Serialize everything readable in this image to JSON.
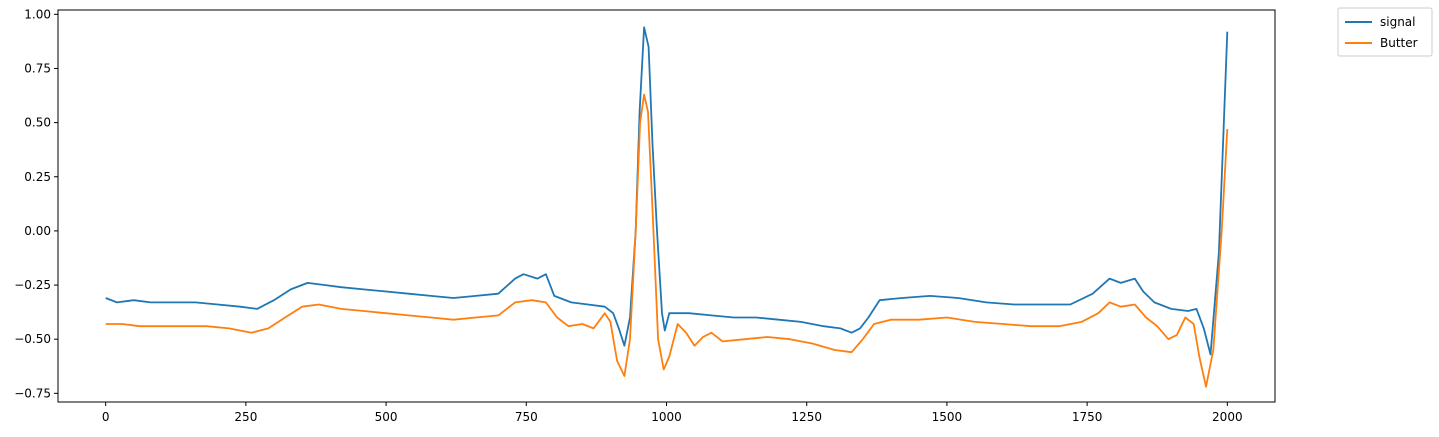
{
  "chart_data": {
    "type": "line",
    "title": "",
    "xlabel": "",
    "ylabel": "",
    "xlim": [
      -85,
      2085
    ],
    "ylim": [
      -0.79,
      1.02
    ],
    "grid": false,
    "legend_position": "outside-top-right",
    "x_ticks": [
      0,
      250,
      500,
      750,
      1000,
      1250,
      1500,
      1750,
      2000
    ],
    "y_ticks": [
      -0.75,
      -0.5,
      -0.25,
      0.0,
      0.25,
      0.5,
      0.75,
      1.0
    ],
    "x_tick_labels": [
      "0",
      "250",
      "500",
      "750",
      "1000",
      "1250",
      "1500",
      "1750",
      "2000"
    ],
    "y_tick_labels": [
      "−0.75",
      "−0.50",
      "−0.25",
      "0.00",
      "0.25",
      "0.50",
      "0.75",
      "1.00"
    ],
    "series": [
      {
        "name": "signal",
        "color": "#1f77b4",
        "points": [
          [
            0,
            -0.31
          ],
          [
            20,
            -0.33
          ],
          [
            50,
            -0.32
          ],
          [
            80,
            -0.33
          ],
          [
            120,
            -0.33
          ],
          [
            160,
            -0.33
          ],
          [
            200,
            -0.34
          ],
          [
            240,
            -0.35
          ],
          [
            270,
            -0.36
          ],
          [
            300,
            -0.32
          ],
          [
            330,
            -0.27
          ],
          [
            360,
            -0.24
          ],
          [
            390,
            -0.25
          ],
          [
            420,
            -0.26
          ],
          [
            460,
            -0.27
          ],
          [
            500,
            -0.28
          ],
          [
            540,
            -0.29
          ],
          [
            580,
            -0.3
          ],
          [
            620,
            -0.31
          ],
          [
            660,
            -0.3
          ],
          [
            700,
            -0.29
          ],
          [
            730,
            -0.22
          ],
          [
            745,
            -0.2
          ],
          [
            770,
            -0.22
          ],
          [
            785,
            -0.2
          ],
          [
            800,
            -0.3
          ],
          [
            830,
            -0.33
          ],
          [
            860,
            -0.34
          ],
          [
            890,
            -0.35
          ],
          [
            905,
            -0.38
          ],
          [
            915,
            -0.45
          ],
          [
            925,
            -0.53
          ],
          [
            935,
            -0.4
          ],
          [
            945,
            0.0
          ],
          [
            952,
            0.55
          ],
          [
            960,
            0.94
          ],
          [
            968,
            0.85
          ],
          [
            975,
            0.4
          ],
          [
            983,
            0.0
          ],
          [
            992,
            -0.38
          ],
          [
            997,
            -0.46
          ],
          [
            1005,
            -0.38
          ],
          [
            1040,
            -0.38
          ],
          [
            1080,
            -0.39
          ],
          [
            1120,
            -0.4
          ],
          [
            1160,
            -0.4
          ],
          [
            1200,
            -0.41
          ],
          [
            1240,
            -0.42
          ],
          [
            1280,
            -0.44
          ],
          [
            1310,
            -0.45
          ],
          [
            1330,
            -0.47
          ],
          [
            1345,
            -0.45
          ],
          [
            1360,
            -0.4
          ],
          [
            1380,
            -0.32
          ],
          [
            1420,
            -0.31
          ],
          [
            1470,
            -0.3
          ],
          [
            1520,
            -0.31
          ],
          [
            1570,
            -0.33
          ],
          [
            1620,
            -0.34
          ],
          [
            1670,
            -0.34
          ],
          [
            1720,
            -0.34
          ],
          [
            1760,
            -0.29
          ],
          [
            1790,
            -0.22
          ],
          [
            1810,
            -0.24
          ],
          [
            1835,
            -0.22
          ],
          [
            1850,
            -0.28
          ],
          [
            1870,
            -0.33
          ],
          [
            1900,
            -0.36
          ],
          [
            1930,
            -0.37
          ],
          [
            1945,
            -0.36
          ],
          [
            1958,
            -0.45
          ],
          [
            1970,
            -0.57
          ],
          [
            1985,
            -0.1
          ],
          [
            2000,
            0.92
          ]
        ]
      },
      {
        "name": "Butter",
        "color": "#ff7f0e",
        "points": [
          [
            0,
            -0.43
          ],
          [
            30,
            -0.43
          ],
          [
            60,
            -0.44
          ],
          [
            100,
            -0.44
          ],
          [
            140,
            -0.44
          ],
          [
            180,
            -0.44
          ],
          [
            220,
            -0.45
          ],
          [
            260,
            -0.47
          ],
          [
            290,
            -0.45
          ],
          [
            320,
            -0.4
          ],
          [
            350,
            -0.35
          ],
          [
            380,
            -0.34
          ],
          [
            420,
            -0.36
          ],
          [
            460,
            -0.37
          ],
          [
            500,
            -0.38
          ],
          [
            540,
            -0.39
          ],
          [
            580,
            -0.4
          ],
          [
            620,
            -0.41
          ],
          [
            660,
            -0.4
          ],
          [
            700,
            -0.39
          ],
          [
            730,
            -0.33
          ],
          [
            760,
            -0.32
          ],
          [
            785,
            -0.33
          ],
          [
            805,
            -0.4
          ],
          [
            825,
            -0.44
          ],
          [
            850,
            -0.43
          ],
          [
            870,
            -0.45
          ],
          [
            890,
            -0.38
          ],
          [
            900,
            -0.42
          ],
          [
            912,
            -0.6
          ],
          [
            925,
            -0.67
          ],
          [
            935,
            -0.5
          ],
          [
            945,
            0.0
          ],
          [
            953,
            0.5
          ],
          [
            960,
            0.63
          ],
          [
            967,
            0.55
          ],
          [
            975,
            0.1
          ],
          [
            985,
            -0.5
          ],
          [
            995,
            -0.64
          ],
          [
            1005,
            -0.58
          ],
          [
            1020,
            -0.43
          ],
          [
            1035,
            -0.47
          ],
          [
            1050,
            -0.53
          ],
          [
            1065,
            -0.49
          ],
          [
            1080,
            -0.47
          ],
          [
            1100,
            -0.51
          ],
          [
            1140,
            -0.5
          ],
          [
            1180,
            -0.49
          ],
          [
            1220,
            -0.5
          ],
          [
            1260,
            -0.52
          ],
          [
            1300,
            -0.55
          ],
          [
            1330,
            -0.56
          ],
          [
            1350,
            -0.5
          ],
          [
            1370,
            -0.43
          ],
          [
            1400,
            -0.41
          ],
          [
            1450,
            -0.41
          ],
          [
            1500,
            -0.4
          ],
          [
            1550,
            -0.42
          ],
          [
            1600,
            -0.43
          ],
          [
            1650,
            -0.44
          ],
          [
            1700,
            -0.44
          ],
          [
            1740,
            -0.42
          ],
          [
            1770,
            -0.38
          ],
          [
            1790,
            -0.33
          ],
          [
            1810,
            -0.35
          ],
          [
            1835,
            -0.34
          ],
          [
            1855,
            -0.4
          ],
          [
            1875,
            -0.44
          ],
          [
            1895,
            -0.5
          ],
          [
            1910,
            -0.48
          ],
          [
            1925,
            -0.4
          ],
          [
            1940,
            -0.43
          ],
          [
            1950,
            -0.58
          ],
          [
            1962,
            -0.72
          ],
          [
            1975,
            -0.55
          ],
          [
            1990,
            0.0
          ],
          [
            2000,
            0.47
          ]
        ]
      }
    ]
  }
}
